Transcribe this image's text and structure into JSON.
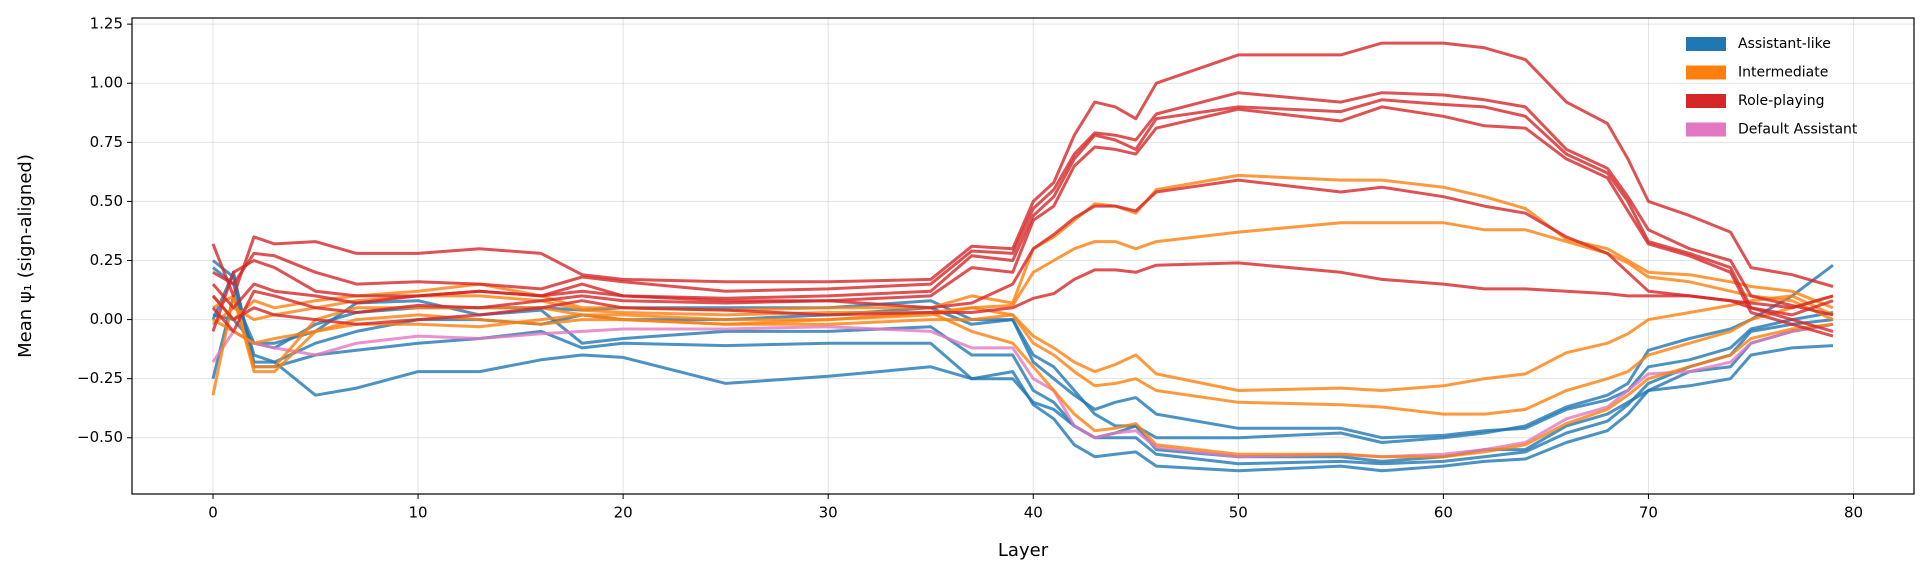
{
  "chart_data": {
    "type": "line",
    "xlabel": "Layer",
    "ylabel": "Mean ψ₁ (sign-aligned)",
    "x": [
      0,
      1,
      2,
      3,
      5,
      7,
      10,
      13,
      16,
      18,
      20,
      25,
      30,
      35,
      37,
      39,
      40,
      41,
      42,
      43,
      44,
      45,
      46,
      50,
      55,
      57,
      60,
      62,
      64,
      66,
      68,
      69,
      70,
      72,
      74,
      75,
      77,
      79
    ],
    "xlim": [
      -3.95,
      82.95
    ],
    "ylim": [
      -0.738,
      1.276
    ],
    "xticks": [
      0,
      10,
      20,
      30,
      40,
      50,
      60,
      70,
      80
    ],
    "yticks": [
      {
        "value": -0.5,
        "label": "−0.50"
      },
      {
        "value": -0.25,
        "label": "−0.25"
      },
      {
        "value": 0,
        "label": "0.00"
      },
      0.25,
      {
        "value": 0.5,
        "label": "0.50"
      },
      0.75,
      {
        "value": 1,
        "label": "1.00"
      },
      1.25
    ],
    "grid": true,
    "legend_position": "upper-right",
    "legend": [
      {
        "name": "Assistant-like",
        "color": "#1f77b4"
      },
      {
        "name": "Intermediate",
        "color": "#ff7f0e"
      },
      {
        "name": "Role-playing",
        "color": "#d62728"
      },
      {
        "name": "Default Assistant",
        "color": "#e377c2"
      }
    ],
    "series": [
      {
        "color": "#1f77b4",
        "values": [
          0.22,
          0.15,
          -0.15,
          -0.18,
          -0.32,
          -0.29,
          -0.22,
          -0.22,
          -0.17,
          -0.15,
          -0.16,
          -0.27,
          -0.24,
          -0.2,
          -0.25,
          -0.25,
          -0.35,
          -0.38,
          -0.45,
          -0.5,
          -0.48,
          -0.45,
          -0.55,
          -0.58,
          -0.58,
          -0.6,
          -0.58,
          -0.55,
          -0.55,
          -0.45,
          -0.4,
          -0.35,
          -0.3,
          -0.28,
          -0.25,
          -0.15,
          -0.12,
          -0.11
        ]
      },
      {
        "color": "#1f77b4",
        "values": [
          0.0,
          0.2,
          -0.2,
          -0.2,
          -0.15,
          -0.13,
          -0.1,
          -0.08,
          -0.05,
          -0.12,
          -0.1,
          -0.11,
          -0.1,
          -0.1,
          -0.25,
          -0.22,
          -0.36,
          -0.42,
          -0.53,
          -0.58,
          -0.57,
          -0.56,
          -0.62,
          -0.64,
          -0.62,
          -0.64,
          -0.62,
          -0.6,
          -0.59,
          -0.52,
          -0.47,
          -0.4,
          -0.3,
          -0.22,
          -0.2,
          -0.1,
          -0.05,
          -0.02
        ]
      },
      {
        "color": "#1f77b4",
        "values": [
          -0.25,
          0.1,
          -0.1,
          -0.1,
          -0.05,
          0.07,
          0.08,
          0.02,
          0.04,
          -0.1,
          -0.08,
          -0.05,
          -0.05,
          -0.03,
          -0.15,
          -0.15,
          -0.3,
          -0.35,
          -0.45,
          -0.5,
          -0.5,
          -0.5,
          -0.57,
          -0.61,
          -0.6,
          -0.61,
          -0.6,
          -0.58,
          -0.56,
          -0.48,
          -0.43,
          -0.36,
          -0.27,
          -0.2,
          -0.15,
          -0.05,
          -0.02,
          0.0
        ]
      },
      {
        "color": "#1f77b4",
        "values": [
          0.02,
          0.0,
          -0.1,
          -0.12,
          -0.02,
          0.03,
          0.05,
          0.05,
          0.05,
          0.04,
          0.05,
          0.05,
          0.05,
          0.08,
          0.0,
          0.0,
          -0.18,
          -0.25,
          -0.32,
          -0.38,
          -0.35,
          -0.33,
          -0.4,
          -0.46,
          -0.46,
          -0.5,
          -0.49,
          -0.47,
          -0.46,
          -0.38,
          -0.34,
          -0.3,
          -0.2,
          -0.17,
          -0.12,
          -0.04,
          0.0,
          0.03
        ]
      },
      {
        "color": "#1f77b4",
        "values": [
          0.25,
          0.18,
          -0.18,
          -0.18,
          -0.1,
          -0.05,
          0.0,
          0.0,
          -0.02,
          0.02,
          0.0,
          0.0,
          0.02,
          0.05,
          -0.02,
          0.0,
          -0.15,
          -0.2,
          -0.3,
          -0.4,
          -0.45,
          -0.45,
          -0.5,
          -0.5,
          -0.48,
          -0.52,
          -0.5,
          -0.48,
          -0.45,
          -0.37,
          -0.32,
          -0.27,
          -0.13,
          -0.08,
          -0.04,
          0.0,
          0.1,
          0.23
        ]
      },
      {
        "color": "#e377c2",
        "values": [
          -0.18,
          -0.05,
          -0.1,
          -0.12,
          -0.15,
          -0.1,
          -0.07,
          -0.08,
          -0.06,
          -0.05,
          -0.04,
          -0.04,
          -0.03,
          -0.05,
          -0.12,
          -0.12,
          -0.25,
          -0.3,
          -0.45,
          -0.5,
          -0.48,
          -0.47,
          -0.54,
          -0.58,
          -0.57,
          -0.58,
          -0.57,
          -0.55,
          -0.52,
          -0.42,
          -0.37,
          -0.3,
          -0.23,
          -0.22,
          -0.18,
          -0.1,
          -0.05,
          -0.02
        ]
      },
      {
        "color": "#ff7f0e",
        "values": [
          0.1,
          0.0,
          0.08,
          0.05,
          0.08,
          0.1,
          0.12,
          0.15,
          0.1,
          0.05,
          0.05,
          0.04,
          0.05,
          0.05,
          0.1,
          0.07,
          0.3,
          0.35,
          0.42,
          0.49,
          0.48,
          0.45,
          0.55,
          0.61,
          0.59,
          0.59,
          0.56,
          0.52,
          0.47,
          0.34,
          0.3,
          0.25,
          0.2,
          0.19,
          0.16,
          0.14,
          0.12,
          0.05
        ]
      },
      {
        "color": "#ff7f0e",
        "values": [
          -0.02,
          0.05,
          0.0,
          0.02,
          0.05,
          0.08,
          0.1,
          0.1,
          0.08,
          0.04,
          0.03,
          0.02,
          0.03,
          0.03,
          0.05,
          0.06,
          0.2,
          0.25,
          0.3,
          0.33,
          0.33,
          0.3,
          0.33,
          0.37,
          0.41,
          0.41,
          0.41,
          0.38,
          0.38,
          0.33,
          0.28,
          0.24,
          0.18,
          0.16,
          0.12,
          0.1,
          0.08,
          0.0
        ]
      },
      {
        "color": "#ff7f0e",
        "values": [
          -0.32,
          0.1,
          -0.22,
          -0.22,
          -0.05,
          -0.02,
          -0.02,
          -0.03,
          0.0,
          0.02,
          0.02,
          0.0,
          0.0,
          0.02,
          0.05,
          0.02,
          -0.07,
          -0.12,
          -0.18,
          -0.22,
          -0.19,
          -0.15,
          -0.23,
          -0.3,
          -0.29,
          -0.3,
          -0.28,
          -0.25,
          -0.23,
          -0.14,
          -0.1,
          -0.06,
          0.0,
          0.03,
          0.06,
          0.08,
          0.1,
          0.02
        ]
      },
      {
        "color": "#ff7f0e",
        "values": [
          0.05,
          0.1,
          -0.2,
          -0.2,
          0.0,
          0.05,
          0.05,
          0.05,
          0.05,
          0.02,
          0.0,
          -0.02,
          -0.02,
          0.0,
          0.0,
          0.02,
          -0.1,
          -0.15,
          -0.22,
          -0.28,
          -0.27,
          -0.25,
          -0.3,
          -0.35,
          -0.36,
          -0.37,
          -0.4,
          -0.4,
          -0.38,
          -0.3,
          -0.25,
          -0.22,
          -0.15,
          -0.1,
          -0.05,
          0.0,
          0.05,
          0.1
        ]
      },
      {
        "color": "#ff7f0e",
        "values": [
          0.0,
          -0.05,
          -0.1,
          -0.08,
          -0.05,
          0.0,
          0.02,
          0.0,
          -0.02,
          0.0,
          0.0,
          -0.02,
          0.0,
          0.03,
          -0.05,
          -0.1,
          -0.2,
          -0.3,
          -0.4,
          -0.47,
          -0.46,
          -0.44,
          -0.53,
          -0.57,
          -0.57,
          -0.58,
          -0.58,
          -0.56,
          -0.53,
          -0.44,
          -0.38,
          -0.32,
          -0.25,
          -0.2,
          -0.15,
          -0.08,
          -0.04,
          -0.02
        ]
      },
      {
        "color": "#d62728",
        "values": [
          0.32,
          0.1,
          0.35,
          0.32,
          0.33,
          0.28,
          0.28,
          0.3,
          0.28,
          0.19,
          0.17,
          0.16,
          0.16,
          0.17,
          0.31,
          0.3,
          0.5,
          0.58,
          0.78,
          0.92,
          0.9,
          0.85,
          1.0,
          1.12,
          1.12,
          1.17,
          1.17,
          1.15,
          1.1,
          0.92,
          0.83,
          0.68,
          0.5,
          0.44,
          0.37,
          0.22,
          0.19,
          0.14
        ]
      },
      {
        "color": "#d62728",
        "values": [
          0.2,
          0.15,
          0.28,
          0.27,
          0.2,
          0.15,
          0.16,
          0.15,
          0.13,
          0.18,
          0.16,
          0.12,
          0.13,
          0.15,
          0.29,
          0.28,
          0.47,
          0.55,
          0.7,
          0.79,
          0.78,
          0.76,
          0.87,
          0.96,
          0.92,
          0.96,
          0.95,
          0.93,
          0.9,
          0.72,
          0.64,
          0.52,
          0.38,
          0.3,
          0.25,
          0.1,
          0.06,
          0.02
        ]
      },
      {
        "color": "#d62728",
        "values": [
          0.15,
          0.05,
          0.15,
          0.12,
          0.1,
          0.07,
          0.1,
          0.12,
          0.1,
          0.15,
          0.1,
          0.09,
          0.1,
          0.12,
          0.27,
          0.25,
          0.44,
          0.52,
          0.68,
          0.78,
          0.76,
          0.72,
          0.85,
          0.9,
          0.88,
          0.93,
          0.91,
          0.9,
          0.86,
          0.7,
          0.62,
          0.5,
          0.33,
          0.28,
          0.22,
          0.05,
          0.0,
          -0.05
        ]
      },
      {
        "color": "#d62728",
        "values": [
          0.05,
          -0.05,
          0.12,
          0.1,
          0.05,
          0.03,
          0.06,
          0.05,
          0.08,
          0.1,
          0.08,
          0.07,
          0.08,
          0.1,
          0.22,
          0.2,
          0.42,
          0.48,
          0.65,
          0.73,
          0.72,
          0.7,
          0.81,
          0.89,
          0.84,
          0.9,
          0.86,
          0.82,
          0.81,
          0.68,
          0.6,
          0.46,
          0.32,
          0.27,
          0.2,
          0.03,
          -0.02,
          -0.07
        ]
      },
      {
        "color": "#d62728",
        "values": [
          -0.05,
          0.2,
          0.25,
          0.22,
          0.12,
          0.1,
          0.1,
          0.12,
          0.1,
          0.12,
          0.1,
          0.08,
          0.08,
          0.05,
          0.07,
          0.15,
          0.3,
          0.36,
          0.43,
          0.48,
          0.48,
          0.46,
          0.54,
          0.59,
          0.54,
          0.56,
          0.52,
          0.48,
          0.45,
          0.35,
          0.28,
          0.2,
          0.12,
          0.1,
          0.08,
          0.05,
          0.02,
          0.08
        ]
      },
      {
        "color": "#d62728",
        "values": [
          0.1,
          0.0,
          0.05,
          0.02,
          0.0,
          -0.02,
          0.0,
          0.02,
          0.05,
          0.08,
          0.05,
          0.04,
          0.02,
          0.03,
          0.03,
          0.05,
          0.09,
          0.11,
          0.17,
          0.21,
          0.21,
          0.2,
          0.23,
          0.24,
          0.2,
          0.17,
          0.15,
          0.13,
          0.13,
          0.12,
          0.11,
          0.1,
          0.1,
          0.1,
          0.08,
          0.07,
          0.05,
          0.1
        ]
      }
    ]
  }
}
